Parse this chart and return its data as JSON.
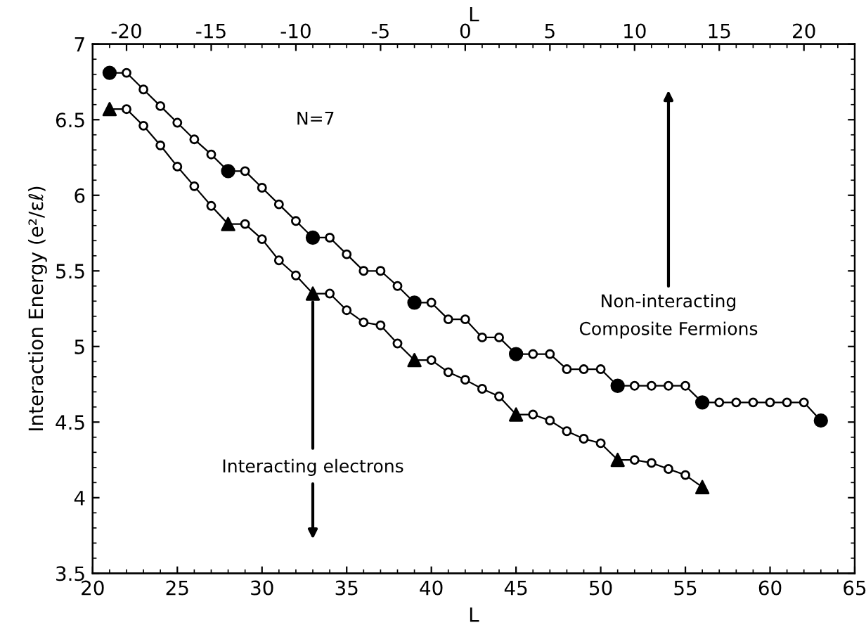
{
  "chart_data": {
    "type": "line",
    "xlabel": "L",
    "x2label": "L",
    "ylabel": "Interaction Energy (e²/εℓ)",
    "annotations": [
      "N=7",
      "Non-interacting\nComposite Fermions",
      {
        "text": "Interacting electrons",
        "x": 33,
        "y": 5.35
      }
    ],
    "series": [
      {
        "color": "#000000",
        "marker": "circle",
        "x": [
          21,
          22,
          23,
          24,
          25,
          26,
          27,
          28,
          29,
          30,
          31,
          32,
          33,
          34,
          35,
          36,
          37,
          38,
          39,
          40,
          41,
          42,
          43,
          44,
          45,
          46,
          47,
          48,
          49,
          50,
          51,
          52,
          53,
          54,
          55,
          56,
          57,
          58,
          59,
          60,
          61,
          62,
          63
        ],
        "values": [
          6.81,
          6.81,
          6.7,
          6.59,
          6.48,
          6.37,
          6.27,
          6.16,
          6.16,
          6.05,
          5.94,
          5.83,
          5.72,
          5.72,
          5.61,
          5.5,
          5.5,
          5.4,
          5.29,
          5.29,
          5.18,
          5.18,
          5.06,
          5.06,
          4.95,
          4.95,
          4.95,
          4.85,
          4.85,
          4.85,
          4.74,
          4.74,
          4.74,
          4.74,
          4.74,
          4.63,
          4.63,
          4.63,
          4.63,
          4.63,
          4.63,
          4.63,
          4.51
        ]
      },
      {
        "color": "#000000",
        "marker": "circle",
        "x": [
          21,
          22,
          23,
          24,
          25,
          26,
          27,
          28,
          29,
          30,
          31,
          32,
          33,
          34,
          35,
          36,
          37,
          38,
          39,
          40,
          41,
          42,
          43,
          44,
          45,
          46,
          47,
          48,
          49,
          50,
          51,
          52,
          53,
          54,
          55,
          56
        ],
        "values": [
          6.57,
          6.57,
          6.46,
          6.33,
          6.19,
          6.06,
          5.93,
          5.81,
          5.81,
          5.71,
          5.57,
          5.47,
          5.35,
          5.35,
          5.24,
          5.16,
          5.14,
          5.02,
          4.91,
          4.91,
          4.83,
          4.78,
          4.72,
          4.67,
          4.55,
          4.55,
          4.51,
          4.44,
          4.39,
          4.36,
          4.25,
          4.25,
          4.23,
          4.19,
          4.15,
          4.07
        ]
      },
      {
        "type": "scatter",
        "color": "#000000",
        "marker": "circle",
        "x": [
          21,
          28,
          33,
          39,
          45,
          51,
          56,
          63
        ],
        "values": [
          6.81,
          6.16,
          5.72,
          5.29,
          4.95,
          4.74,
          4.63,
          4.51
        ]
      },
      {
        "type": "scatter",
        "color": "#000000",
        "marker": "triangle",
        "x": [
          21,
          28,
          33,
          39,
          45,
          51,
          56
        ],
        "values": [
          6.57,
          5.81,
          5.35,
          4.91,
          4.55,
          4.25,
          4.07
        ]
      }
    ],
    "xlim": [
      20,
      65
    ],
    "xticks": [
      20,
      25,
      30,
      35,
      40,
      45,
      50,
      55,
      60,
      65
    ],
    "x2lim": [
      -22,
      23
    ],
    "x2ticks": [
      -20,
      -15,
      -10,
      -5,
      0,
      5,
      10,
      15,
      20
    ],
    "ylim": [
      3.5,
      7
    ],
    "yticks": [
      3.5,
      4,
      4.5,
      5,
      5.5,
      6,
      6.5,
      7
    ],
    "grid": false,
    "legend": false
  }
}
